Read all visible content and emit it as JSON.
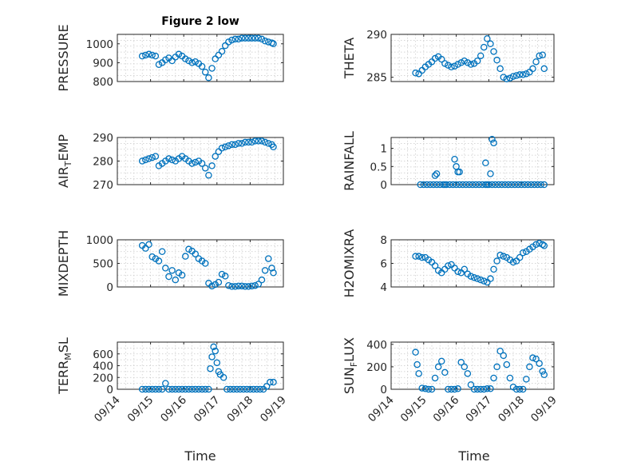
{
  "figure_title": "Figure 2 low",
  "colors": {
    "marker": "#0072bd",
    "axis": "#262626",
    "grid": "#c8c8c8"
  },
  "chart_data": [
    {
      "type": "scatter",
      "ylabel": "PRESSURE",
      "ylim": [
        800,
        1050
      ],
      "yticks": [
        800,
        900,
        1000
      ],
      "xlim": [
        "09/14",
        "09/19"
      ],
      "x": [
        0.75,
        0.85,
        0.95,
        1.05,
        1.15,
        1.25,
        1.35,
        1.45,
        1.55,
        1.65,
        1.75,
        1.85,
        1.95,
        2.05,
        2.15,
        2.25,
        2.35,
        2.45,
        2.55,
        2.65,
        2.75,
        2.85,
        2.95,
        3.05,
        3.15,
        3.25,
        3.35,
        3.45,
        3.55,
        3.65,
        3.75,
        3.85,
        3.95,
        4.05,
        4.15,
        4.25,
        4.35,
        4.45,
        4.55,
        4.65,
        4.7
      ],
      "y": [
        935,
        940,
        945,
        940,
        935,
        890,
        900,
        915,
        925,
        910,
        930,
        945,
        935,
        920,
        910,
        900,
        905,
        895,
        880,
        850,
        820,
        870,
        920,
        940,
        960,
        990,
        1010,
        1020,
        1025,
        1025,
        1030,
        1030,
        1030,
        1030,
        1030,
        1030,
        1025,
        1015,
        1010,
        1005,
        1000
      ]
    },
    {
      "type": "scatter",
      "ylabel": "THETA",
      "ylim": [
        284.5,
        290
      ],
      "yticks": [
        285,
        290
      ],
      "xlim": [
        "09/14",
        "09/19"
      ],
      "x": [
        0.75,
        0.85,
        0.95,
        1.05,
        1.15,
        1.25,
        1.35,
        1.45,
        1.55,
        1.65,
        1.75,
        1.85,
        1.95,
        2.05,
        2.15,
        2.25,
        2.35,
        2.45,
        2.55,
        2.65,
        2.75,
        2.85,
        2.95,
        3.05,
        3.15,
        3.25,
        3.35,
        3.45,
        3.55,
        3.65,
        3.75,
        3.85,
        3.95,
        4.05,
        4.15,
        4.25,
        4.35,
        4.45,
        4.55,
        4.65,
        4.7
      ],
      "y": [
        285.5,
        285.4,
        285.8,
        286.2,
        286.5,
        286.8,
        287.2,
        287.4,
        287.1,
        286.6,
        286.4,
        286.2,
        286.3,
        286.5,
        286.7,
        286.9,
        286.7,
        286.5,
        286.6,
        286.9,
        287.5,
        288.5,
        289.5,
        288.9,
        288.0,
        287.0,
        286.0,
        285.0,
        284.8,
        284.9,
        285.1,
        285.2,
        285.3,
        285.3,
        285.4,
        285.6,
        286.0,
        286.8,
        287.5,
        287.6,
        286.0
      ]
    },
    {
      "type": "scatter",
      "ylabel": "AIR_TEMP",
      "ylim": [
        270,
        290
      ],
      "yticks": [
        270,
        280,
        290
      ],
      "xlim": [
        "09/14",
        "09/19"
      ],
      "x": [
        0.75,
        0.85,
        0.95,
        1.05,
        1.15,
        1.25,
        1.35,
        1.45,
        1.55,
        1.65,
        1.75,
        1.85,
        1.95,
        2.05,
        2.15,
        2.25,
        2.35,
        2.45,
        2.55,
        2.65,
        2.75,
        2.85,
        2.95,
        3.05,
        3.15,
        3.25,
        3.35,
        3.45,
        3.55,
        3.65,
        3.75,
        3.85,
        3.95,
        4.05,
        4.15,
        4.25,
        4.35,
        4.45,
        4.55,
        4.65,
        4.7
      ],
      "y": [
        280,
        280.5,
        281,
        281.5,
        282,
        278,
        279,
        280,
        281,
        280.5,
        280,
        281,
        282,
        281,
        280,
        279,
        279.5,
        280,
        279,
        277,
        274,
        278,
        282,
        284,
        285.5,
        286,
        286.5,
        287,
        287,
        287.5,
        287.5,
        288,
        288,
        288,
        288.5,
        288.5,
        288.5,
        288,
        287.5,
        287,
        286
      ]
    },
    {
      "type": "scatter",
      "ylabel": "RAINFALL",
      "ylim": [
        0,
        1.3
      ],
      "yticks": [
        0,
        0.5,
        1
      ],
      "xlim": [
        "09/14",
        "09/19"
      ],
      "x": [
        0.9,
        1.0,
        1.1,
        1.2,
        1.3,
        1.4,
        1.5,
        1.6,
        1.65,
        1.7,
        1.8,
        1.9,
        2.0,
        2.1,
        2.2,
        2.3,
        2.4,
        2.5,
        2.6,
        2.7,
        2.8,
        2.9,
        2.95,
        3.0,
        3.1,
        3.2,
        3.3,
        3.4,
        3.5,
        3.6,
        3.7,
        3.8,
        3.9,
        4.0,
        4.1,
        4.2,
        4.3,
        4.4,
        4.5,
        4.6,
        4.7,
        1.35,
        1.4,
        1.95,
        2.0,
        2.05,
        2.1,
        2.9,
        3.05,
        3.1,
        3.15
      ],
      "y": [
        0,
        0,
        0,
        0,
        0,
        0,
        0,
        0,
        0,
        0,
        0,
        0,
        0,
        0,
        0,
        0,
        0,
        0,
        0,
        0,
        0,
        0,
        0,
        0,
        0,
        0,
        0,
        0,
        0,
        0,
        0,
        0,
        0,
        0,
        0,
        0,
        0,
        0,
        0,
        0,
        0,
        0.25,
        0.3,
        0.7,
        0.5,
        0.35,
        0.35,
        0.6,
        0.3,
        1.25,
        1.15
      ]
    },
    {
      "type": "scatter",
      "ylabel": "MIXDEPTH",
      "ylim": [
        0,
        1000
      ],
      "yticks": [
        0,
        500,
        1000
      ],
      "xlim": [
        "09/14",
        "09/19"
      ],
      "x": [
        0.75,
        0.85,
        0.95,
        1.05,
        1.15,
        1.25,
        1.35,
        1.45,
        1.55,
        1.65,
        1.75,
        1.85,
        1.95,
        2.05,
        2.15,
        2.25,
        2.35,
        2.45,
        2.55,
        2.65,
        2.75,
        2.85,
        2.95,
        3.05,
        3.15,
        3.25,
        3.35,
        3.45,
        3.55,
        3.65,
        3.75,
        3.85,
        3.95,
        4.05,
        4.15,
        4.25,
        4.35,
        4.45,
        4.55,
        4.65,
        4.7
      ],
      "y": [
        880,
        820,
        900,
        640,
        600,
        550,
        750,
        400,
        220,
        350,
        150,
        300,
        250,
        650,
        800,
        760,
        700,
        600,
        550,
        500,
        80,
        20,
        50,
        100,
        270,
        230,
        30,
        10,
        10,
        20,
        20,
        10,
        10,
        20,
        30,
        60,
        150,
        350,
        600,
        400,
        300
      ]
    },
    {
      "type": "scatter",
      "ylabel": "H2OMIXRA",
      "ylim": [
        4,
        8
      ],
      "yticks": [
        4,
        6,
        8
      ],
      "xlim": [
        "09/14",
        "09/19"
      ],
      "x": [
        0.75,
        0.85,
        0.95,
        1.05,
        1.15,
        1.25,
        1.35,
        1.45,
        1.55,
        1.65,
        1.75,
        1.85,
        1.95,
        2.05,
        2.15,
        2.25,
        2.35,
        2.45,
        2.55,
        2.65,
        2.75,
        2.85,
        2.95,
        3.05,
        3.15,
        3.25,
        3.35,
        3.45,
        3.55,
        3.65,
        3.75,
        3.85,
        3.95,
        4.05,
        4.15,
        4.25,
        4.35,
        4.45,
        4.55,
        4.65,
        4.7
      ],
      "y": [
        6.6,
        6.6,
        6.5,
        6.5,
        6.3,
        6.1,
        5.8,
        5.4,
        5.2,
        5.5,
        5.8,
        5.9,
        5.6,
        5.3,
        5.2,
        5.5,
        5.1,
        4.9,
        4.8,
        4.7,
        4.6,
        4.5,
        4.4,
        4.7,
        5.5,
        6.2,
        6.7,
        6.6,
        6.5,
        6.3,
        6.1,
        6.2,
        6.5,
        6.9,
        7.0,
        7.2,
        7.4,
        7.6,
        7.7,
        7.6,
        7.5
      ]
    },
    {
      "type": "scatter",
      "ylabel": "TERR_MSL",
      "ylim": [
        0,
        800
      ],
      "yticks": [
        0,
        200,
        400,
        600
      ],
      "xlim": [
        "09/14",
        "09/19"
      ],
      "x": [
        0.75,
        0.85,
        0.95,
        1.05,
        1.15,
        1.25,
        1.35,
        1.45,
        1.55,
        1.65,
        1.75,
        1.85,
        1.95,
        2.05,
        2.15,
        2.25,
        2.35,
        2.45,
        2.55,
        2.65,
        2.75,
        2.8,
        2.85,
        2.9,
        2.95,
        3.0,
        3.05,
        3.1,
        3.2,
        3.3,
        3.4,
        3.5,
        3.6,
        3.7,
        3.8,
        3.9,
        4.0,
        4.1,
        4.2,
        4.3,
        4.4,
        4.5,
        4.6,
        4.7
      ],
      "y": [
        0,
        0,
        0,
        0,
        0,
        0,
        0,
        100,
        0,
        0,
        0,
        0,
        0,
        0,
        0,
        0,
        0,
        0,
        0,
        0,
        0,
        350,
        550,
        720,
        650,
        450,
        300,
        250,
        200,
        0,
        0,
        0,
        0,
        0,
        0,
        0,
        0,
        0,
        0,
        0,
        0,
        50,
        120,
        120
      ]
    },
    {
      "type": "scatter",
      "ylabel": "SUN_FLUX",
      "ylim": [
        0,
        420
      ],
      "yticks": [
        0,
        200,
        400
      ],
      "xlim": [
        "09/14",
        "09/19"
      ],
      "x": [
        0.75,
        0.8,
        0.85,
        0.95,
        1.05,
        1.15,
        1.25,
        1.35,
        1.45,
        1.55,
        1.65,
        1.75,
        1.85,
        1.95,
        2.05,
        2.15,
        2.25,
        2.35,
        2.45,
        2.55,
        2.65,
        2.75,
        2.85,
        2.95,
        3.05,
        3.15,
        3.25,
        3.35,
        3.45,
        3.55,
        3.65,
        3.75,
        3.85,
        3.95,
        4.05,
        4.15,
        4.25,
        4.35,
        4.45,
        4.55,
        4.65,
        4.7
      ],
      "y": [
        330,
        220,
        140,
        10,
        5,
        0,
        0,
        100,
        200,
        250,
        150,
        0,
        0,
        0,
        5,
        240,
        200,
        140,
        40,
        0,
        0,
        0,
        0,
        5,
        5,
        100,
        200,
        340,
        300,
        220,
        100,
        20,
        0,
        0,
        0,
        90,
        200,
        280,
        270,
        230,
        160,
        130
      ]
    }
  ],
  "xticks": [
    "09/14",
    "09/15",
    "09/16",
    "09/17",
    "09/18",
    "09/19"
  ],
  "xlabel": "Time"
}
